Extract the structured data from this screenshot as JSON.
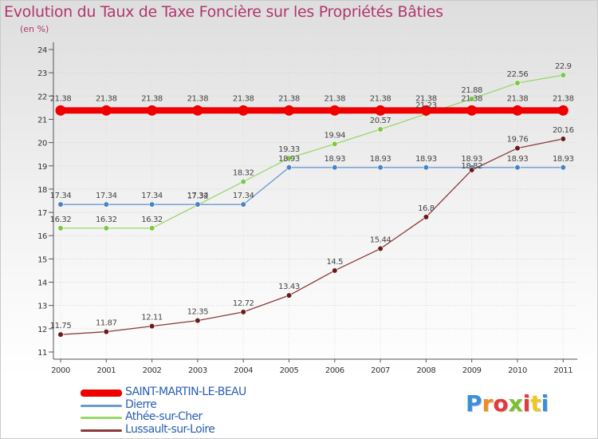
{
  "header": {
    "title": "Evolution du Taux de Taxe Foncière sur les Propriétés Bâties",
    "unit": "(en %)"
  },
  "logo": {
    "text": "Proxiti",
    "colors": [
      "#3a8fd8",
      "#f08c1e",
      "#e43a3a",
      "#7bbf2a",
      "#e43a3a",
      "#f0c81e",
      "#3a8fd8"
    ]
  },
  "chart_data": {
    "type": "line",
    "title": "Evolution du Taux de Taxe Foncière sur les Propriétés Bâties",
    "ylabel": "(en %)",
    "xlabel": "",
    "categories": [
      "2000",
      "2001",
      "2002",
      "2003",
      "2004",
      "2005",
      "2006",
      "2007",
      "2008",
      "2009",
      "2010",
      "2011"
    ],
    "y_ticks": [
      "11",
      "12",
      "13",
      "14",
      "15",
      "16",
      "17",
      "18",
      "19",
      "20",
      "21",
      "22",
      "23",
      "24"
    ],
    "ylim": [
      11,
      24
    ],
    "grid": true,
    "series": [
      {
        "name": "SAINT-MARTIN-LE-BEAU",
        "color": "#ee0000",
        "marker_color": "#ee0000",
        "thick": true,
        "values": [
          21.38,
          21.38,
          21.38,
          21.38,
          21.38,
          21.38,
          21.38,
          21.38,
          21.38,
          21.38,
          21.38,
          21.38
        ],
        "labels": [
          "21.38",
          "21.38",
          "21.38",
          "21.38",
          "21.38",
          "21.38",
          "21.38",
          "21.38",
          "21.38",
          "21.38",
          "21.38",
          "21.38"
        ]
      },
      {
        "name": "Dierre",
        "color": "#6a9bd0",
        "marker_color": "#4a82c6",
        "thick": false,
        "values": [
          17.34,
          17.34,
          17.34,
          17.34,
          17.34,
          18.93,
          18.93,
          18.93,
          18.93,
          18.93,
          18.93,
          18.93
        ],
        "labels": [
          "17.34",
          "17.34",
          "17.34",
          "17.34",
          "17.34",
          "18.93",
          "18.93",
          "18.93",
          "18.93",
          "18.93",
          "18.93",
          "18.93"
        ]
      },
      {
        "name": "Athée-sur-Cher",
        "color": "#99d86a",
        "marker_color": "#7cc840",
        "thick": false,
        "values": [
          16.32,
          16.32,
          16.32,
          17.32,
          18.32,
          19.33,
          19.94,
          20.57,
          21.23,
          21.88,
          22.56,
          22.9
        ],
        "labels": [
          "16.32",
          "16.32",
          "16.32",
          "17.32",
          "18.32",
          "19.33",
          "19.94",
          "20.57",
          "21.23",
          "21.88",
          "22.56",
          "22.9"
        ]
      },
      {
        "name": "Lussault-sur-Loire",
        "color": "#8a3a3a",
        "marker_color": "#6a1a1a",
        "thick": false,
        "values": [
          11.75,
          11.87,
          12.11,
          12.35,
          12.72,
          13.43,
          14.5,
          15.44,
          16.8,
          18.82,
          19.76,
          20.16
        ],
        "labels": [
          "11.75",
          "11.87",
          "12.11",
          "12.35",
          "12.72",
          "13.43",
          "14.5",
          "15.44",
          "16.8",
          "18.82",
          "19.76",
          "20.16"
        ]
      }
    ]
  }
}
